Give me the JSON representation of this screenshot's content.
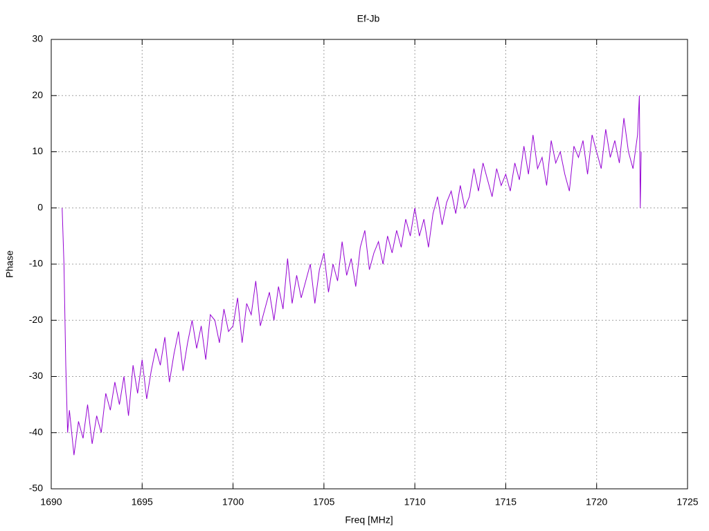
{
  "chart_data": {
    "type": "line",
    "title": "Ef-Jb",
    "xlabel": "Freq [MHz]",
    "ylabel": "Phase",
    "color": "#9400d3",
    "grid": true,
    "xlim": [
      1690,
      1725
    ],
    "xticks": [
      1690,
      1695,
      1700,
      1705,
      1710,
      1715,
      1720,
      1725
    ],
    "ylim": [
      -50,
      30
    ],
    "yticks": [
      -50,
      -40,
      -30,
      -20,
      -10,
      0,
      10,
      20,
      30
    ],
    "x": [
      1690.6,
      1690.7,
      1690.8,
      1690.9,
      1691,
      1691.25,
      1691.5,
      1691.75,
      1692,
      1692.25,
      1692.5,
      1692.75,
      1693,
      1693.25,
      1693.5,
      1693.75,
      1694,
      1694.25,
      1694.5,
      1694.75,
      1695,
      1695.25,
      1695.5,
      1695.75,
      1696,
      1696.25,
      1696.5,
      1696.75,
      1697,
      1697.25,
      1697.5,
      1697.75,
      1698,
      1698.25,
      1698.5,
      1698.75,
      1699,
      1699.25,
      1699.5,
      1699.75,
      1700,
      1700.25,
      1700.5,
      1700.75,
      1701,
      1701.25,
      1701.5,
      1701.75,
      1702,
      1702.25,
      1702.5,
      1702.75,
      1703,
      1703.25,
      1703.5,
      1703.75,
      1704,
      1704.25,
      1704.5,
      1704.75,
      1705,
      1705.25,
      1705.5,
      1705.75,
      1706,
      1706.25,
      1706.5,
      1706.75,
      1707,
      1707.25,
      1707.5,
      1707.75,
      1708,
      1708.25,
      1708.5,
      1708.75,
      1709,
      1709.25,
      1709.5,
      1709.75,
      1710,
      1710.25,
      1710.5,
      1710.75,
      1711,
      1711.25,
      1711.5,
      1711.75,
      1712,
      1712.25,
      1712.5,
      1712.75,
      1713,
      1713.25,
      1713.5,
      1713.75,
      1714,
      1714.25,
      1714.5,
      1714.75,
      1715,
      1715.25,
      1715.5,
      1715.75,
      1716,
      1716.25,
      1716.5,
      1716.75,
      1717,
      1717.25,
      1717.5,
      1717.75,
      1718,
      1718.25,
      1718.5,
      1718.75,
      1719,
      1719.25,
      1719.5,
      1719.75,
      1720,
      1720.25,
      1720.5,
      1720.75,
      1721,
      1721.25,
      1721.5,
      1721.75,
      1722,
      1722.25,
      1722.35,
      1722.4,
      1722.45
    ],
    "values": [
      0,
      -10,
      -28,
      -40,
      -36,
      -44,
      -38,
      -41,
      -35,
      -42,
      -37,
      -40,
      -33,
      -36,
      -31,
      -35,
      -30,
      -37,
      -28,
      -33,
      -27,
      -34,
      -29,
      -25,
      -28,
      -23,
      -31,
      -26,
      -22,
      -29,
      -24,
      -20,
      -25,
      -21,
      -27,
      -19,
      -20,
      -24,
      -18,
      -22,
      -21,
      -16,
      -24,
      -17,
      -19,
      -13,
      -21,
      -18,
      -15,
      -20,
      -14,
      -18,
      -9,
      -17,
      -12,
      -16,
      -13,
      -10,
      -17,
      -11,
      -8,
      -15,
      -10,
      -13,
      -6,
      -12,
      -9,
      -14,
      -7,
      -4,
      -11,
      -8,
      -6,
      -10,
      -5,
      -8,
      -4,
      -7,
      -2,
      -5,
      0,
      -5,
      -2,
      -7,
      -1,
      2,
      -3,
      1,
      3,
      -1,
      4,
      0,
      2,
      7,
      3,
      8,
      5,
      2,
      7,
      4,
      6,
      3,
      8,
      5,
      11,
      6,
      13,
      7,
      9,
      4,
      12,
      8,
      10,
      6,
      3,
      11,
      9,
      12,
      6,
      13,
      10,
      7,
      14,
      9,
      12,
      8,
      16,
      10,
      7,
      13,
      20,
      0,
      10
    ]
  }
}
